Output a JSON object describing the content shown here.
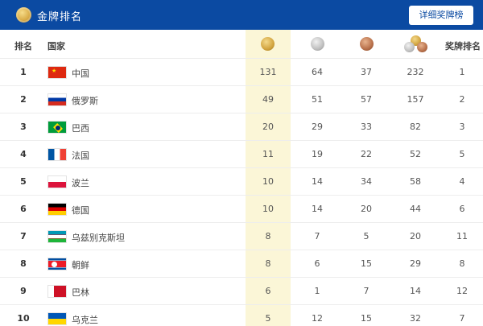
{
  "header": {
    "title": "金牌排名",
    "button_label": "详细奖牌榜",
    "medal_icon": "gold-medal-icon"
  },
  "columns": {
    "rank": "排名",
    "country": "国家",
    "medal_rank": "奖牌排名"
  },
  "colors": {
    "header_bg": "#0b4aa2",
    "gold_column_bg": "#fbf6d7"
  },
  "rows": [
    {
      "rank": "1",
      "country": "中国",
      "flag": "china-flag",
      "gold": "131",
      "silver": "64",
      "bronze": "37",
      "total": "232",
      "medal_rank": "1"
    },
    {
      "rank": "2",
      "country": "俄罗斯",
      "flag": "russia-flag",
      "gold": "49",
      "silver": "51",
      "bronze": "57",
      "total": "157",
      "medal_rank": "2"
    },
    {
      "rank": "3",
      "country": "巴西",
      "flag": "brazil-flag",
      "gold": "20",
      "silver": "29",
      "bronze": "33",
      "total": "82",
      "medal_rank": "3"
    },
    {
      "rank": "4",
      "country": "法国",
      "flag": "france-flag",
      "gold": "11",
      "silver": "19",
      "bronze": "22",
      "total": "52",
      "medal_rank": "5"
    },
    {
      "rank": "5",
      "country": "波兰",
      "flag": "poland-flag",
      "gold": "10",
      "silver": "14",
      "bronze": "34",
      "total": "58",
      "medal_rank": "4"
    },
    {
      "rank": "6",
      "country": "德国",
      "flag": "germany-flag",
      "gold": "10",
      "silver": "14",
      "bronze": "20",
      "total": "44",
      "medal_rank": "6"
    },
    {
      "rank": "7",
      "country": "乌兹别克斯坦",
      "flag": "uzbekistan-flag",
      "gold": "8",
      "silver": "7",
      "bronze": "5",
      "total": "20",
      "medal_rank": "11"
    },
    {
      "rank": "8",
      "country": "朝鲜",
      "flag": "north-korea-flag",
      "gold": "8",
      "silver": "6",
      "bronze": "15",
      "total": "29",
      "medal_rank": "8"
    },
    {
      "rank": "9",
      "country": "巴林",
      "flag": "bahrain-flag",
      "gold": "6",
      "silver": "1",
      "bronze": "7",
      "total": "14",
      "medal_rank": "12"
    },
    {
      "rank": "10",
      "country": "乌克兰",
      "flag": "ukraine-flag",
      "gold": "5",
      "silver": "12",
      "bronze": "15",
      "total": "32",
      "medal_rank": "7"
    }
  ]
}
